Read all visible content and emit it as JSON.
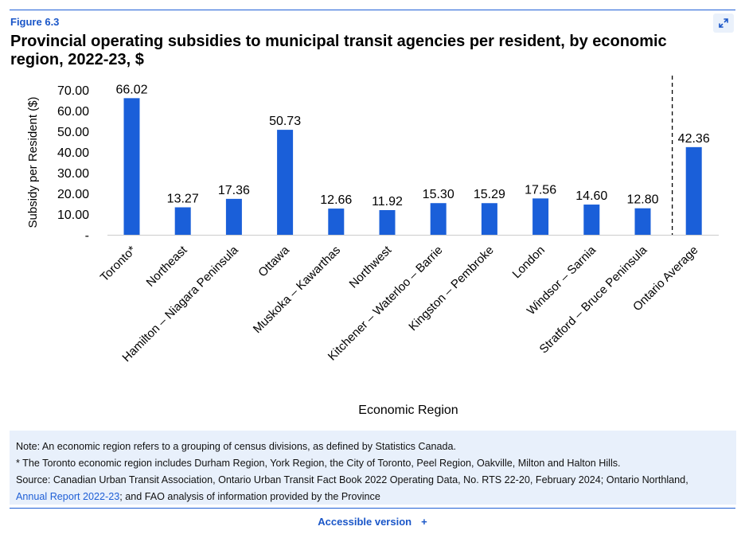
{
  "figure_label": "Figure 6.3",
  "title": "Provincial operating subsidies to municipal transit agencies per resident, by economic region, 2022-23, $",
  "expand_icon": "expand-arrows-icon",
  "chart_data": {
    "type": "bar",
    "title": "",
    "xlabel": "Economic Region",
    "ylabel": "Subsidy per Resident ($)",
    "ylim": [
      0,
      70
    ],
    "yticks": [
      "-",
      "10.00",
      "20.00",
      "30.00",
      "40.00",
      "50.00",
      "60.00",
      "70.00"
    ],
    "ytick_values": [
      0,
      10,
      20,
      30,
      40,
      50,
      60,
      70
    ],
    "categories": [
      "Toronto*",
      "Northeast",
      "Hamilton – Niagara Peninsula",
      "Ottawa",
      "Muskoka – Kawarthas",
      "Northwest",
      "Kitchener – Waterloo – Barrie",
      "Kingston – Pembroke",
      "London",
      "Windsor –  Sarnia",
      "Stratford – Bruce Peninsula",
      "Ontario Average"
    ],
    "values": [
      66.02,
      13.27,
      17.36,
      50.73,
      12.66,
      11.92,
      15.3,
      15.29,
      17.56,
      14.6,
      12.8,
      42.36
    ],
    "value_labels": [
      "66.02",
      "13.27",
      "17.36",
      "50.73",
      "12.66",
      "11.92",
      "15.30",
      "15.29",
      "17.56",
      "14.60",
      "12.80",
      "42.36"
    ],
    "bar_color": "#1a5fd9",
    "grid": false,
    "separator_before_last": true
  },
  "notes": {
    "note1": "Note: An economic region refers to a grouping of census divisions, as defined by Statistics Canada.",
    "note2": "* The Toronto economic region includes Durham Region, York Region, the City of Toronto, Peel Region, Oakville, Milton and Halton Hills.",
    "source_prefix": "Source: Canadian Urban Transit Association, Ontario Urban Transit Fact Book 2022 Operating Data, No. RTS 22-20, February 2024; Ontario Northland, ",
    "source_link": "Annual Report 2022-23",
    "source_suffix": "; and FAO analysis of information provided by the Province"
  },
  "accessible": {
    "label": "Accessible version",
    "plus": "+"
  },
  "colors": {
    "accent": "#1a56c8",
    "notes_bg": "#e8f0fb"
  }
}
